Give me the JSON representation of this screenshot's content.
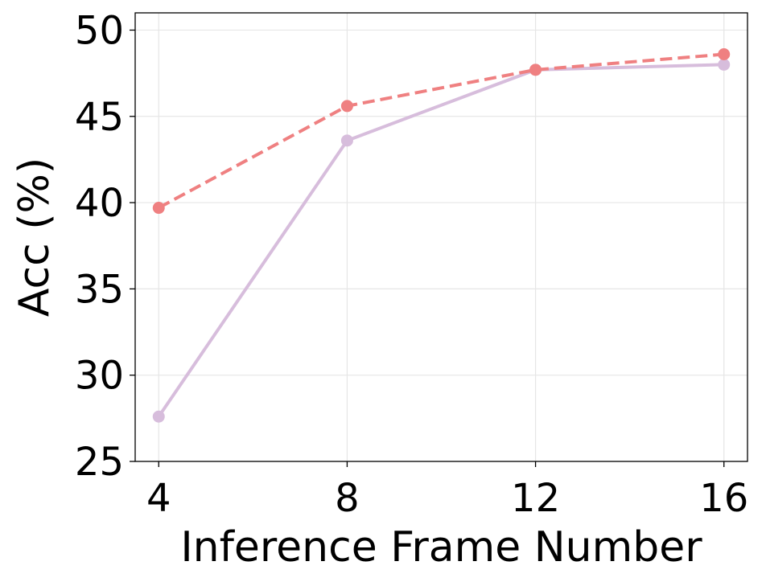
{
  "chart_data": {
    "type": "line",
    "title": "",
    "xlabel": "Inference Frame Number",
    "ylabel": "Acc (%)",
    "x": [
      4,
      8,
      12,
      16
    ],
    "x_ticks": [
      "4",
      "8",
      "12",
      "16"
    ],
    "y_ticks": [
      "25",
      "30",
      "35",
      "40",
      "45",
      "50"
    ],
    "xlim": [
      3.5,
      16.5
    ],
    "ylim": [
      25,
      51
    ],
    "grid": true,
    "legend": "none",
    "series": [
      {
        "values": [
          39.7,
          45.6,
          47.7,
          48.6
        ],
        "color": "#ef8081",
        "line_style": "dashed",
        "marker": "circle"
      },
      {
        "values": [
          27.6,
          43.6,
          47.7,
          48.0
        ],
        "color": "#d7bddc",
        "line_style": "solid",
        "marker": "circle"
      }
    ]
  }
}
